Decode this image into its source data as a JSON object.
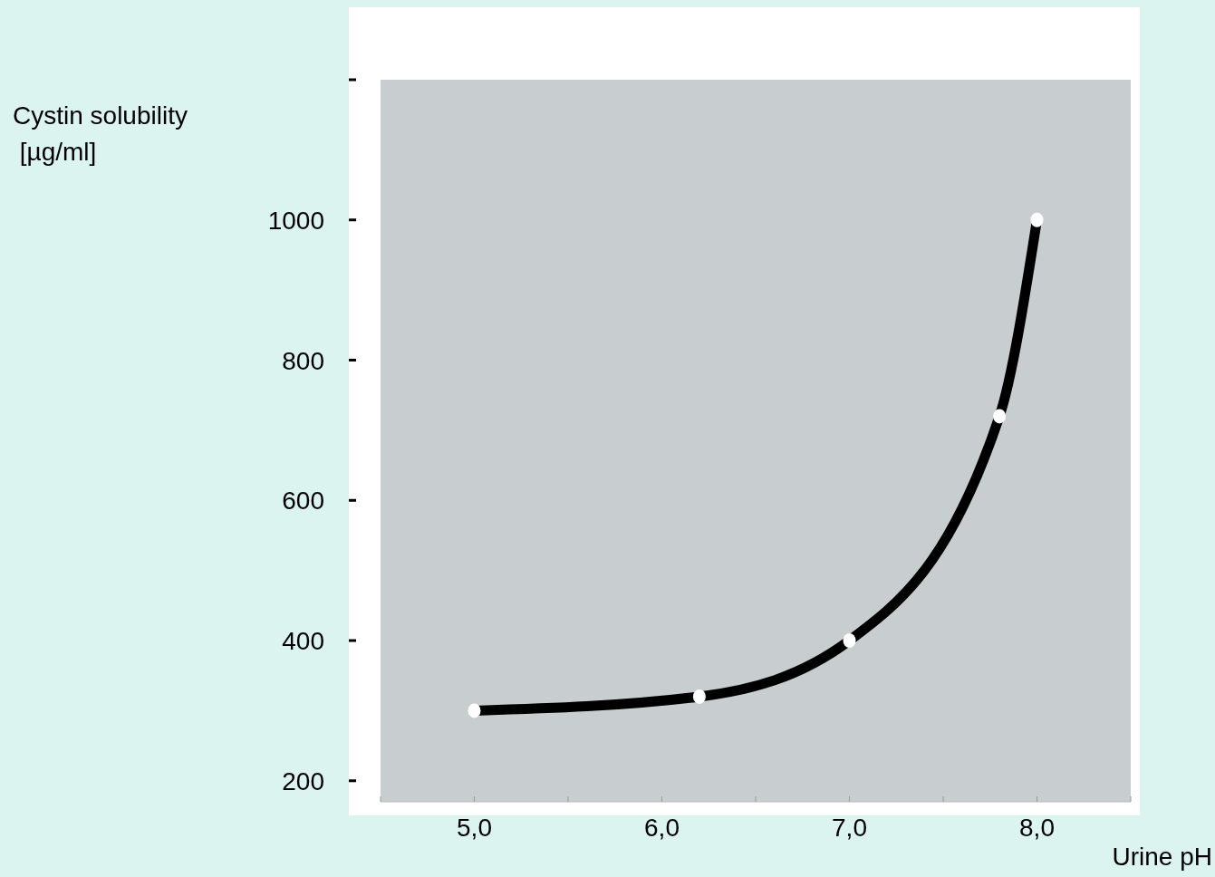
{
  "chart_data": {
    "type": "line",
    "xlabel": "Urine pH",
    "ylabel": "Cystin solubility\n [µg/ml]",
    "x": [
      5.0,
      6.2,
      7.0,
      7.8,
      8.0
    ],
    "series": [
      {
        "color": "#000000",
        "values": [
          300,
          320,
          400,
          720,
          1000
        ]
      }
    ],
    "xlim": [
      4.5,
      8.5
    ],
    "ylim": [
      170,
      1200
    ],
    "xticks": [
      {
        "value": 4.5,
        "label": null
      },
      {
        "value": 5,
        "label": "5,0"
      },
      {
        "value": 5.5,
        "label": null
      },
      {
        "value": 6,
        "label": "6,0"
      },
      {
        "value": 6.5,
        "label": null
      },
      {
        "value": 7,
        "label": "7,0"
      },
      {
        "value": 7.5,
        "label": null
      },
      {
        "value": 8,
        "label": "8,0"
      },
      {
        "value": 8.5,
        "label": null
      }
    ],
    "yticks": [
      200,
      400,
      600,
      800,
      1000,
      {
        "value": 1200,
        "label": null
      }
    ],
    "grid": false,
    "marker": "circle",
    "line_style": "solid"
  }
}
